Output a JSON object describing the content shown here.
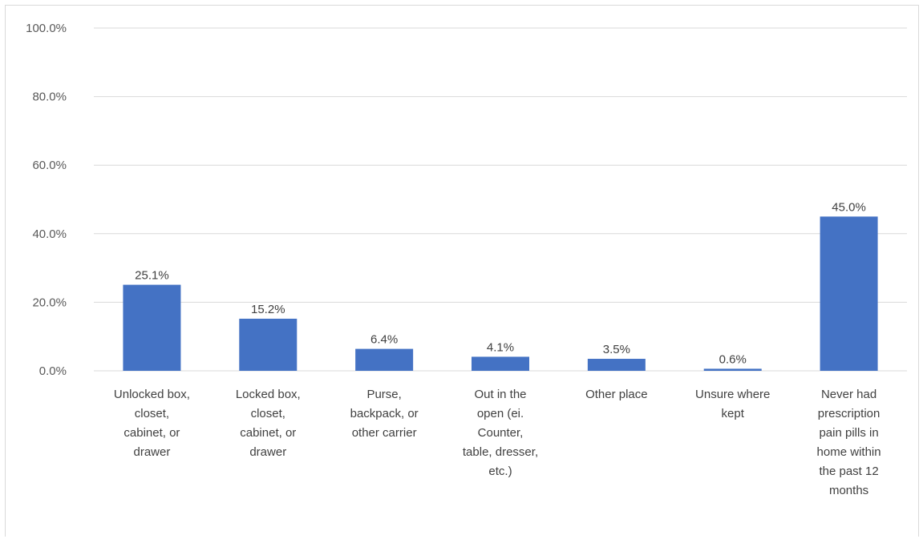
{
  "chart_data": {
    "type": "bar",
    "title": "",
    "xlabel": "",
    "ylabel": "",
    "ylim": [
      0,
      100
    ],
    "yticks": [
      "0.0%",
      "20.0%",
      "40.0%",
      "60.0%",
      "80.0%",
      "100.0%"
    ],
    "ytick_values": [
      0,
      20,
      40,
      60,
      80,
      100
    ],
    "grid": true,
    "legend": "none",
    "bar_color": "#4472c4",
    "categories": [
      [
        "Unlocked box,",
        "closet,",
        "cabinet, or",
        "drawer"
      ],
      [
        "Locked box,",
        "closet,",
        "cabinet, or",
        "drawer"
      ],
      [
        "Purse,",
        "backpack, or",
        "other carrier"
      ],
      [
        "Out in the",
        "open (ei.",
        "Counter,",
        "table, dresser,",
        "etc.)"
      ],
      [
        "Other place"
      ],
      [
        "Unsure where",
        "kept"
      ],
      [
        "Never had",
        "prescription",
        "pain pills in",
        "home within",
        "the past 12",
        "months"
      ]
    ],
    "values": [
      25.1,
      15.2,
      6.4,
      4.1,
      3.5,
      0.6,
      45.0
    ],
    "value_labels": [
      "25.1%",
      "15.2%",
      "6.4%",
      "4.1%",
      "3.5%",
      "0.6%",
      "45.0%"
    ]
  }
}
